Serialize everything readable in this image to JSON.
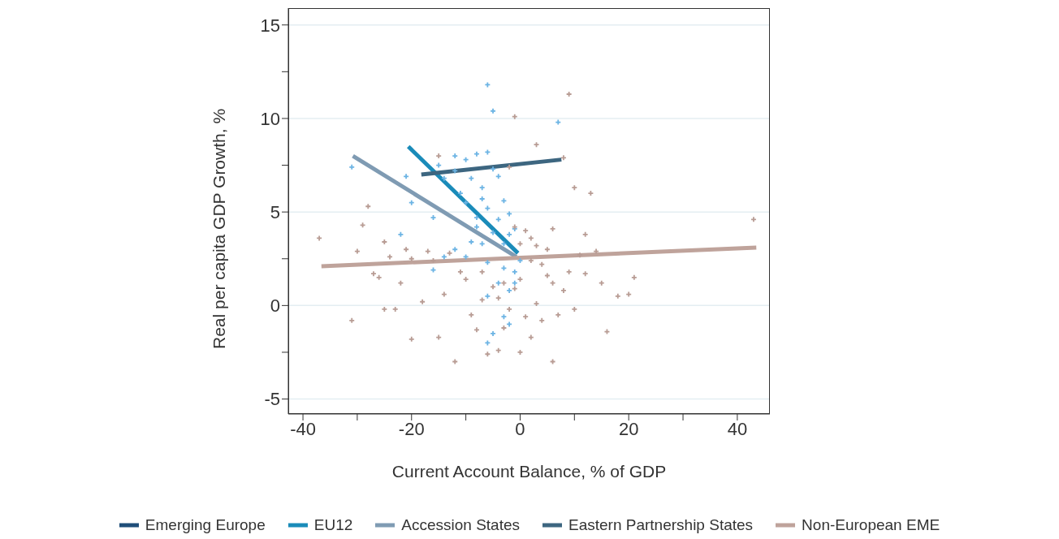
{
  "chart_data": {
    "type": "scatter",
    "xlabel": "Current Account Balance, % of GDP",
    "ylabel": "Real per capita GDP Growth, %",
    "xlim": [
      -42.7,
      46
    ],
    "ylim": [
      -5.8,
      15.9
    ],
    "xticks": [
      -40,
      {
        "value": -30,
        "label": null
      },
      -20,
      {
        "value": -10,
        "label": null
      },
      0,
      {
        "value": 10,
        "label": null
      },
      20,
      {
        "value": 30,
        "label": null
      },
      40
    ],
    "yticks": [
      -5,
      {
        "value": -2.5,
        "label": null
      },
      0,
      {
        "value": 2.5,
        "label": null
      },
      5,
      {
        "value": 7.5,
        "label": null
      },
      10,
      {
        "value": 12.5,
        "label": null
      },
      15
    ],
    "grid": "y",
    "legend": "bottom",
    "marker": "cross",
    "series": [
      {
        "color": "#6cb4e4",
        "x": [
          -6,
          -5,
          7,
          -31,
          -21,
          -12,
          -10,
          -8,
          -6,
          -5,
          -9,
          -7,
          -4,
          -3,
          -6,
          -8,
          -10,
          -4,
          -2,
          -1,
          -5,
          -3,
          -7,
          -9,
          -14,
          -12,
          -6,
          -3,
          -1,
          -16,
          -10,
          -4,
          -2,
          -6,
          -3,
          -5,
          -6,
          -2,
          -1,
          -8,
          -12,
          -14,
          -15,
          -11,
          -16,
          -20,
          -22,
          -2,
          0,
          -7
        ],
        "values": [
          11.8,
          10.4,
          9.8,
          7.4,
          6.9,
          8.0,
          7.8,
          8.1,
          8.2,
          7.3,
          6.8,
          6.3,
          6.9,
          5.6,
          5.2,
          4.7,
          5.5,
          4.6,
          4.9,
          4.1,
          3.9,
          3.3,
          3.3,
          3.4,
          2.6,
          3.0,
          2.3,
          2.0,
          1.8,
          1.9,
          2.6,
          1.2,
          0.8,
          0.5,
          -0.6,
          -1.5,
          -2.0,
          -1.0,
          1.2,
          4.2,
          7.2,
          6.8,
          7.5,
          6.0,
          4.7,
          5.5,
          3.8,
          3.8,
          2.4,
          5.7
        ]
      },
      {
        "color": "#b89c94",
        "x": [
          9,
          -1,
          3,
          -2,
          -15,
          8,
          10,
          13,
          -28,
          -29,
          -25,
          -21,
          -17,
          -13,
          -37,
          -30,
          -24,
          -20,
          -27,
          -22,
          -31,
          -23,
          -20,
          -15,
          -12,
          -18,
          -14,
          -9,
          -10,
          -7,
          -5,
          -4,
          -3,
          -2,
          -1,
          0,
          1,
          2,
          3,
          -1,
          4,
          5,
          6,
          8,
          10,
          7,
          4,
          2,
          0,
          6,
          12,
          15,
          18,
          21,
          16,
          9,
          11,
          14,
          20,
          43,
          -6,
          -8,
          -4,
          1,
          3,
          -7,
          2,
          0,
          -3,
          -11,
          -16,
          -25,
          12,
          6,
          5,
          -26
        ],
        "values": [
          11.3,
          10.1,
          8.6,
          7.4,
          8.0,
          7.9,
          6.3,
          6.0,
          5.3,
          4.3,
          3.4,
          3.0,
          2.9,
          2.8,
          3.6,
          2.9,
          2.6,
          2.5,
          1.7,
          1.2,
          -0.8,
          -0.2,
          -1.8,
          -1.7,
          -3.0,
          0.2,
          0.6,
          -0.5,
          1.4,
          1.8,
          1.0,
          0.4,
          -1.2,
          -0.2,
          0.9,
          3.3,
          4.0,
          3.6,
          3.2,
          4.2,
          2.2,
          1.6,
          1.2,
          0.8,
          -0.2,
          -0.5,
          -0.8,
          -1.7,
          -2.5,
          -3.0,
          1.7,
          1.2,
          0.5,
          1.5,
          -1.4,
          1.8,
          2.7,
          2.9,
          0.6,
          4.6,
          -2.6,
          -1.3,
          -2.4,
          -0.6,
          0.1,
          0.3,
          2.4,
          1.4,
          1.2,
          1.8,
          2.4,
          -0.2,
          3.8,
          4.1,
          3.0,
          1.5
        ]
      },
      {
        "type": "line",
        "name": "Emerging Europe",
        "color": "#1f4e79",
        "marker": "none"
      },
      {
        "type": "line",
        "name": "EU12",
        "color": "#1a8bb9",
        "marker": "none",
        "x": [
          -20.6,
          -0.4
        ],
        "values": [
          8.5,
          2.8
        ]
      },
      {
        "type": "line",
        "name": "Accession States",
        "color": "#7f9bb3",
        "marker": "none",
        "x": [
          -30.8,
          -0.7
        ],
        "values": [
          8.0,
          2.6
        ]
      },
      {
        "type": "line",
        "name": "Eastern Partnership States",
        "color": "#3d6680",
        "marker": "none",
        "x": [
          -18.2,
          7.6
        ],
        "values": [
          7.0,
          7.8
        ]
      },
      {
        "type": "line",
        "name": "Non-European EME",
        "color": "#bfa39b",
        "marker": "none",
        "x": [
          -36.6,
          43.5
        ],
        "values": [
          2.1,
          3.1
        ]
      }
    ]
  }
}
